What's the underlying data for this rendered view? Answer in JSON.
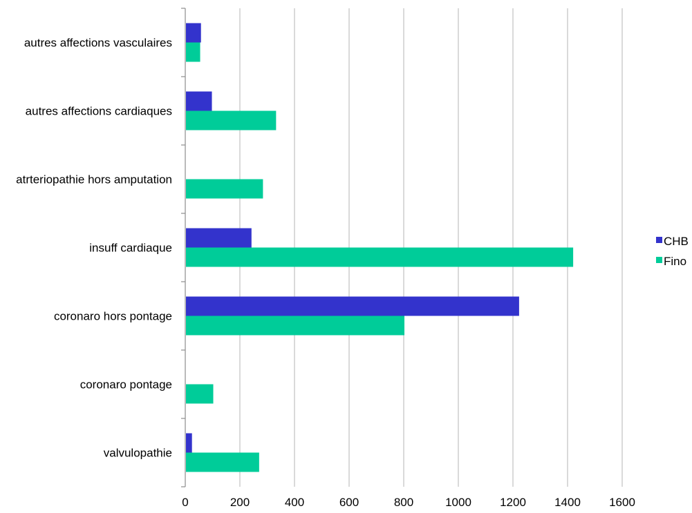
{
  "chart_data": {
    "type": "bar",
    "orientation": "horizontal",
    "categories": [
      "autres affections vasculaires",
      "autres affections cardiaques",
      "atrteriopathie hors amputation",
      "insuff cardiaque",
      "coronaro hors pontage",
      "coronaro pontage",
      "valvulopathie"
    ],
    "series": [
      {
        "name": "CHB",
        "color": "#3333cc",
        "values": [
          55,
          95,
          0,
          240,
          1220,
          0,
          22
        ]
      },
      {
        "name": "Fino",
        "color": "#00cc99",
        "values": [
          52,
          330,
          282,
          1418,
          800,
          100,
          268
        ]
      }
    ],
    "xlim": [
      0,
      1600
    ],
    "xticks": [
      "0",
      "200",
      "400",
      "600",
      "800",
      "1000",
      "1200",
      "1400",
      "1600"
    ],
    "grid": true,
    "legend_position": "right",
    "title": "",
    "xlabel": "",
    "ylabel": ""
  }
}
